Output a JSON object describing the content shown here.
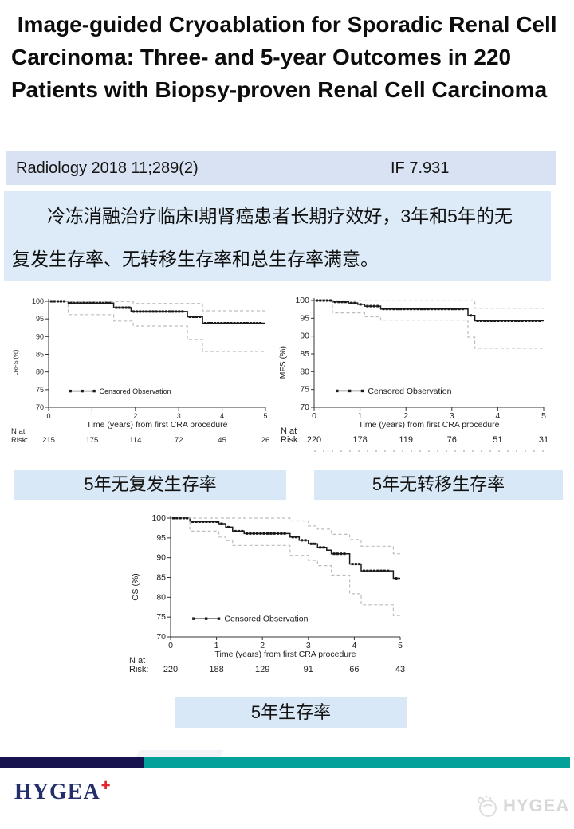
{
  "title": " Image-guided Cryoablation for Sporadic Renal Cell Carcinoma: Three- and 5-year Outcomes in 220 Patients with Biopsy-proven Renal Cell Carcinoma",
  "banner": {
    "journal": "Radiology 2018 11;289(2)",
    "impact_factor": "IF 7.931",
    "bg": "#d9e2f2"
  },
  "summary": {
    "bg": "#dcebf7",
    "line1": "冷冻消融治疗临床I期肾癌患者长期疗效好，3年和5年的无",
    "line2": "复发生存率、无转移生存率和总生存率满意。"
  },
  "chart_labels": {
    "lrfs": "5年无复发生存率",
    "mfs": "5年无转移生存率",
    "os": "5年生存率",
    "bg": "#d9e8f6"
  },
  "footer": {
    "bar_navy_color": "#17134f",
    "bar_teal_color": "#04a09a",
    "logo_text": "HYGEA",
    "logo_color": "#232f6b",
    "logo_cross_color": "#e3252b",
    "watermark_text": "HYGEA",
    "watermark_color": "#d8d8d8"
  },
  "chart_data": [
    {
      "type": "line",
      "subtype": "kaplan-meier-step",
      "ylabel": "LRFS (%)",
      "xlabel": "Time (years) from first CRA procedure",
      "legend": [
        "Censored Observation"
      ],
      "legend_position": "inside-lower-left",
      "grid": false,
      "ylim": [
        70,
        100
      ],
      "xlim": [
        0,
        5
      ],
      "yticks": [
        70,
        75,
        80,
        85,
        90,
        95,
        100
      ],
      "xticks": [
        0,
        1,
        2,
        3,
        4,
        5
      ],
      "risk_label_line1": "N at",
      "risk_label_line2": "Risk:",
      "n_at_risk": [
        215,
        175,
        114,
        72,
        45,
        26
      ],
      "line_color": "#1a1a1a",
      "ci_color": "#bdbdbd",
      "series": [
        {
          "name": "LRFS KM estimate",
          "style": "step-solid-censor-marks",
          "points": [
            [
              0,
              100
            ],
            [
              0.45,
              99.5
            ],
            [
              1.5,
              98.2
            ],
            [
              1.9,
              97.1
            ],
            [
              3.2,
              95.6
            ],
            [
              3.55,
              93.8
            ],
            [
              5,
              93.8
            ]
          ]
        },
        {
          "name": "95% CI upper",
          "style": "step-dashed",
          "points": [
            [
              0,
              100
            ],
            [
              0.5,
              99.9
            ],
            [
              1.95,
              99.4
            ],
            [
              3.55,
              97.3
            ],
            [
              5,
              97.3
            ]
          ]
        },
        {
          "name": "95% CI lower",
          "style": "step-dashed",
          "points": [
            [
              0,
              100
            ],
            [
              0.45,
              96.2
            ],
            [
              1.5,
              94.4
            ],
            [
              1.95,
              93.0
            ],
            [
              3.2,
              89.2
            ],
            [
              3.55,
              85.8
            ],
            [
              5,
              85.8
            ]
          ]
        }
      ]
    },
    {
      "type": "line",
      "subtype": "kaplan-meier-step",
      "ylabel": "MFS (%)",
      "xlabel": "Time (years) from first CRA procedure",
      "legend": [
        "Censored Observation"
      ],
      "legend_position": "inside-lower-left",
      "grid": false,
      "ylim": [
        70,
        100
      ],
      "xlim": [
        0,
        5
      ],
      "yticks": [
        70,
        75,
        80,
        85,
        90,
        95,
        100
      ],
      "xticks": [
        0,
        1,
        2,
        3,
        4,
        5
      ],
      "risk_label_line1": "N at",
      "risk_label_line2": "Risk:",
      "n_at_risk": [
        220,
        178,
        119,
        76,
        51,
        31
      ],
      "line_color": "#1a1a1a",
      "ci_color": "#bdbdbd",
      "series": [
        {
          "name": "MFS KM estimate",
          "style": "step-solid-censor-marks",
          "points": [
            [
              0,
              100
            ],
            [
              0.4,
              99.6
            ],
            [
              0.75,
              99.3
            ],
            [
              0.95,
              98.9
            ],
            [
              1.1,
              98.4
            ],
            [
              1.45,
              97.6
            ],
            [
              3.35,
              95.8
            ],
            [
              3.5,
              94.3
            ],
            [
              5,
              94.3
            ]
          ]
        },
        {
          "name": "95% CI upper",
          "style": "step-dashed",
          "points": [
            [
              0,
              100
            ],
            [
              0.45,
              99.9
            ],
            [
              3.5,
              97.8
            ],
            [
              5,
              97.8
            ]
          ]
        },
        {
          "name": "95% CI lower",
          "style": "step-dashed",
          "points": [
            [
              0,
              100
            ],
            [
              0.4,
              96.5
            ],
            [
              1.1,
              95.4
            ],
            [
              1.45,
              94.5
            ],
            [
              3.35,
              89.7
            ],
            [
              3.5,
              86.6
            ],
            [
              5,
              86.6
            ]
          ]
        }
      ]
    },
    {
      "type": "line",
      "subtype": "kaplan-meier-step",
      "ylabel": "OS (%)",
      "xlabel": "Time (years) from first CRA procedure",
      "legend": [
        "Censored Observation"
      ],
      "legend_position": "inside-lower-left",
      "grid": false,
      "ylim": [
        70,
        100
      ],
      "xlim": [
        0,
        5
      ],
      "yticks": [
        70,
        75,
        80,
        85,
        90,
        95,
        100
      ],
      "xticks": [
        0,
        1,
        2,
        3,
        4,
        5
      ],
      "risk_label_line1": "N at",
      "risk_label_line2": "Risk:",
      "n_at_risk": [
        220,
        188,
        129,
        91,
        66,
        43
      ],
      "line_color": "#1a1a1a",
      "ci_color": "#bdbdbd",
      "series": [
        {
          "name": "OS KM estimate",
          "style": "step-solid-censor-marks",
          "points": [
            [
              0,
              100
            ],
            [
              0.42,
              99.1
            ],
            [
              1.05,
              98.6
            ],
            [
              1.2,
              97.7
            ],
            [
              1.35,
              96.7
            ],
            [
              1.6,
              96.1
            ],
            [
              2.6,
              95.2
            ],
            [
              2.8,
              94.4
            ],
            [
              3.0,
              93.5
            ],
            [
              3.2,
              92.6
            ],
            [
              3.4,
              91.9
            ],
            [
              3.5,
              91.0
            ],
            [
              3.9,
              88.4
            ],
            [
              4.15,
              86.7
            ],
            [
              4.85,
              84.8
            ],
            [
              5,
              84.8
            ]
          ]
        },
        {
          "name": "95% CI upper",
          "style": "step-dashed",
          "points": [
            [
              0,
              100
            ],
            [
              2.6,
              99.3
            ],
            [
              3.0,
              98.0
            ],
            [
              3.2,
              97.2
            ],
            [
              3.5,
              95.9
            ],
            [
              3.9,
              94.6
            ],
            [
              4.15,
              92.9
            ],
            [
              4.85,
              91.0
            ],
            [
              5,
              91.0
            ]
          ]
        },
        {
          "name": "95% CI lower",
          "style": "step-dashed",
          "points": [
            [
              0,
              100
            ],
            [
              0.42,
              96.7
            ],
            [
              1.05,
              95.2
            ],
            [
              1.2,
              94.3
            ],
            [
              1.35,
              93.1
            ],
            [
              2.6,
              90.6
            ],
            [
              3.0,
              89.3
            ],
            [
              3.2,
              88.0
            ],
            [
              3.5,
              85.6
            ],
            [
              3.9,
              80.9
            ],
            [
              4.15,
              78.1
            ],
            [
              4.85,
              75.4
            ],
            [
              5,
              75.4
            ]
          ]
        }
      ]
    }
  ]
}
